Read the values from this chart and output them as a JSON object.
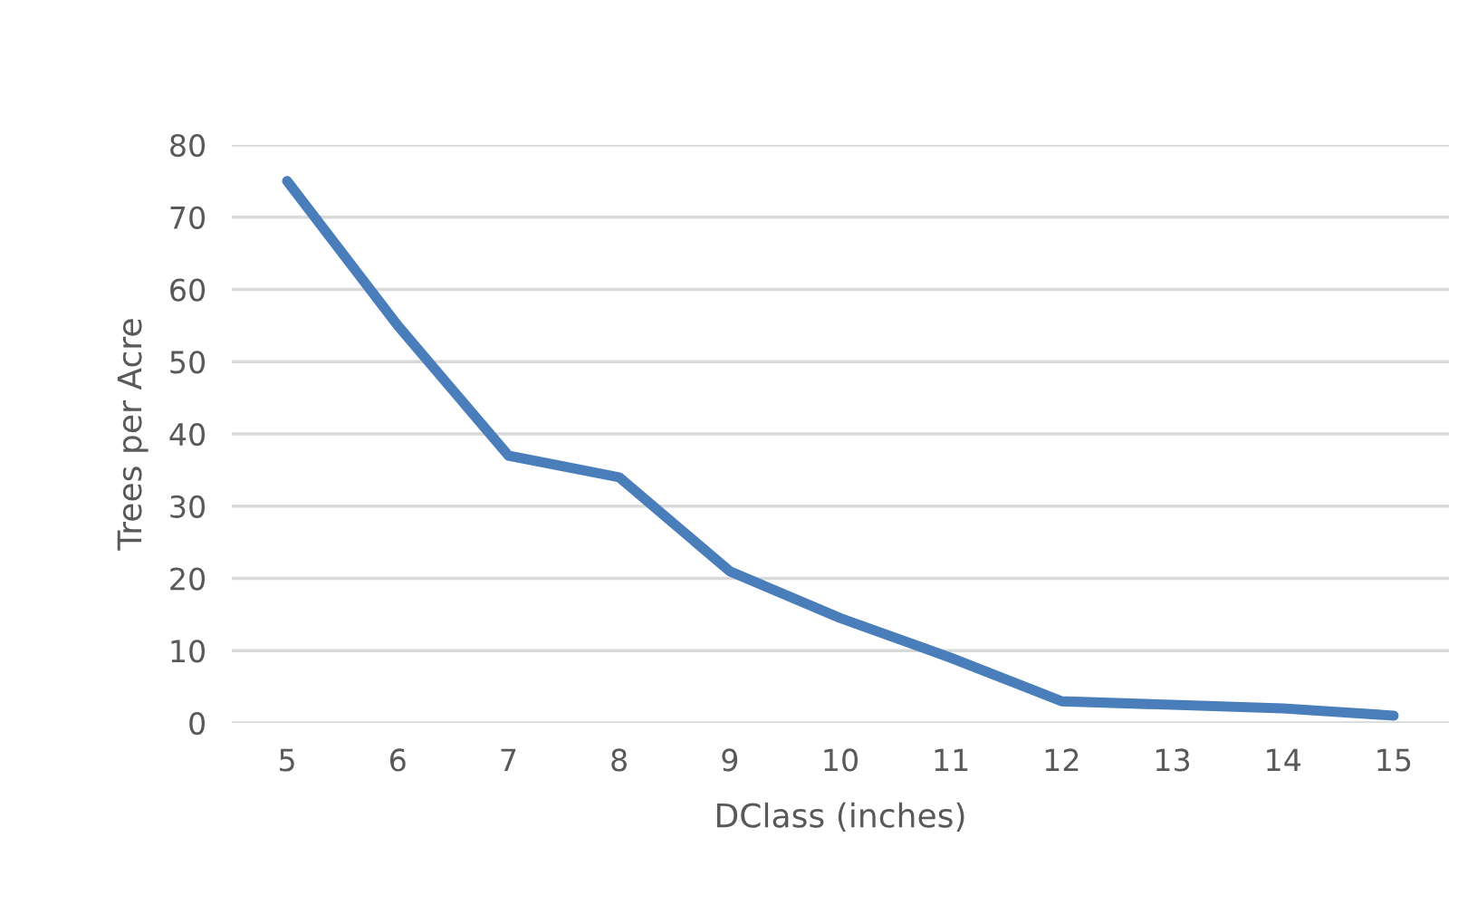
{
  "chart_data": {
    "type": "line",
    "xlabel": "DClass (inches)",
    "ylabel": "Trees per Acre",
    "categories": [
      "5",
      "6",
      "7",
      "8",
      "9",
      "10",
      "11",
      "12",
      "13",
      "14",
      "15"
    ],
    "series": [
      {
        "color": "#4a7ebb",
        "values": [
          75,
          55,
          37,
          34,
          21,
          14.5,
          9,
          3,
          2.5,
          2,
          1
        ]
      }
    ],
    "ylim": [
      0,
      80
    ],
    "yticks": [
      0,
      10,
      20,
      30,
      40,
      50,
      60,
      70,
      80
    ],
    "grid": "y",
    "marker": "none",
    "line_style": "solid"
  }
}
